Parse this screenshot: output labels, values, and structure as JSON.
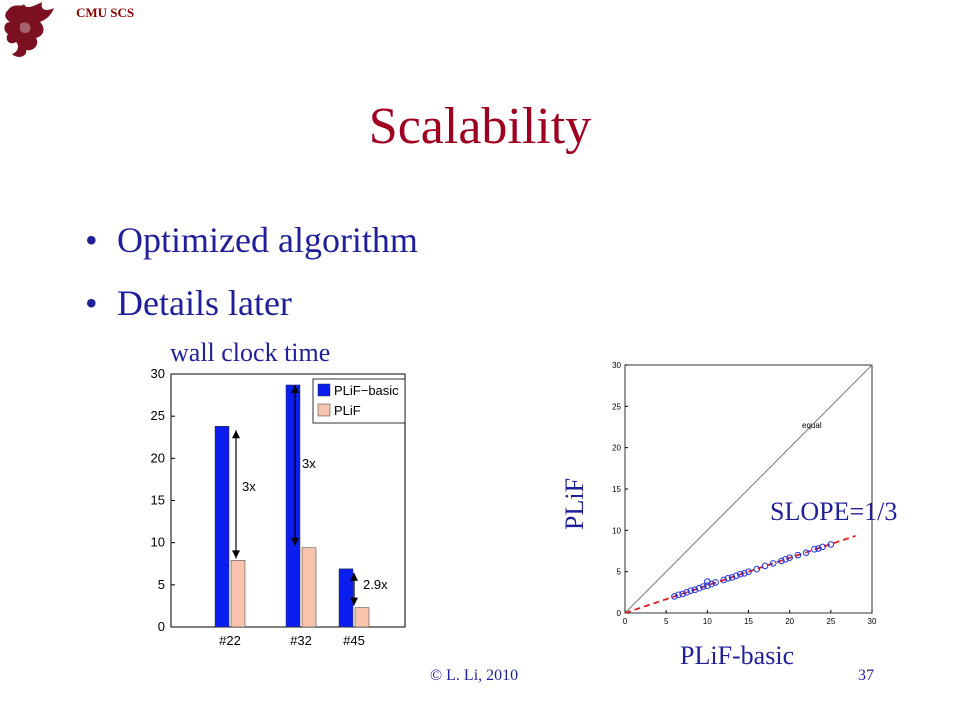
{
  "header": {
    "label": "CMU SCS"
  },
  "slide": {
    "title": "Scalability",
    "bullets": [
      {
        "text": "Optimized algorithm"
      },
      {
        "text": "Details later"
      }
    ],
    "wall_clock_label": "wall clock time",
    "scatter_ylabel": "PLiF",
    "scatter_xlabel": "PLiF-basic",
    "slope_label": "SLOPE=1/3"
  },
  "footer": {
    "copyright": "© L. Li, 2010",
    "page_number": "37"
  },
  "colors": {
    "title": "#a00020",
    "text_blue": "#1f1f9a",
    "bar_basic": "#0a1ef0",
    "bar_plif": "#f8c3ac",
    "scatter_point": "#2233dd",
    "fit_line": "#e02020"
  },
  "chart_data": [
    {
      "type": "bar",
      "categories": [
        "#22",
        "#32",
        "#45"
      ],
      "series": [
        {
          "name": "PLiF−basic",
          "values": [
            23.8,
            28.7,
            6.9
          ]
        },
        {
          "name": "PLiF",
          "values": [
            7.9,
            9.4,
            2.3
          ]
        }
      ],
      "ylim": [
        0,
        30
      ],
      "yticks": [
        0,
        5,
        10,
        15,
        20,
        25,
        30
      ],
      "legend": "top-right",
      "annotations": [
        "3x",
        "3x",
        "2.9x"
      ]
    },
    {
      "type": "scatter",
      "xlim": [
        0,
        30
      ],
      "ylim": [
        0,
        30
      ],
      "xticks": [
        0,
        5,
        10,
        15,
        20,
        25,
        30
      ],
      "yticks": [
        0,
        5,
        10,
        15,
        20,
        25,
        30
      ],
      "reference_line_label": "equal",
      "points": [
        [
          6,
          2
        ],
        [
          6.5,
          2.2
        ],
        [
          7,
          2.3
        ],
        [
          7.5,
          2.5
        ],
        [
          8,
          2.7
        ],
        [
          8.5,
          2.8
        ],
        [
          9,
          3
        ],
        [
          9.5,
          3.2
        ],
        [
          10,
          3.3
        ],
        [
          10.5,
          3.5
        ],
        [
          11,
          3.7
        ],
        [
          12,
          4
        ],
        [
          12.5,
          4.2
        ],
        [
          13,
          4.3
        ],
        [
          13.5,
          4.5
        ],
        [
          14,
          4.7
        ],
        [
          14.5,
          4.8
        ],
        [
          15,
          5
        ],
        [
          16,
          5.3
        ],
        [
          17,
          5.7
        ],
        [
          18,
          6
        ],
        [
          19,
          6.3
        ],
        [
          19.5,
          6.5
        ],
        [
          20,
          6.7
        ],
        [
          21,
          7
        ],
        [
          22,
          7.3
        ],
        [
          23,
          7.7
        ],
        [
          23.5,
          7.8
        ],
        [
          24,
          8
        ],
        [
          25,
          8.3
        ],
        [
          10,
          3.8
        ]
      ],
      "fit_slope": 0.3333
    }
  ]
}
